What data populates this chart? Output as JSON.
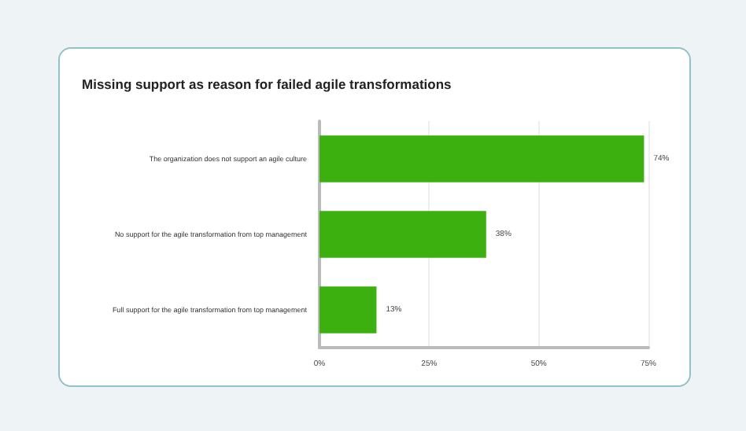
{
  "chart_data": {
    "type": "bar",
    "orientation": "horizontal",
    "title": "Missing support as reason for failed agile transformations",
    "categories": [
      "The organization does not support an agile culture",
      "No support for the agile transformation from top management",
      "Full support for the agile transformation from top management"
    ],
    "values": [
      74,
      38,
      13
    ],
    "value_labels": [
      "74%",
      "38%",
      "13%"
    ],
    "color": "#3cb00f",
    "xlim": [
      0,
      75
    ],
    "xticks": [
      {
        "value": 0,
        "label": "0%"
      },
      {
        "value": 25,
        "label": "25%"
      },
      {
        "value": 50,
        "label": "50%"
      },
      {
        "value": 75,
        "label": "75%"
      }
    ],
    "grid": "x"
  }
}
